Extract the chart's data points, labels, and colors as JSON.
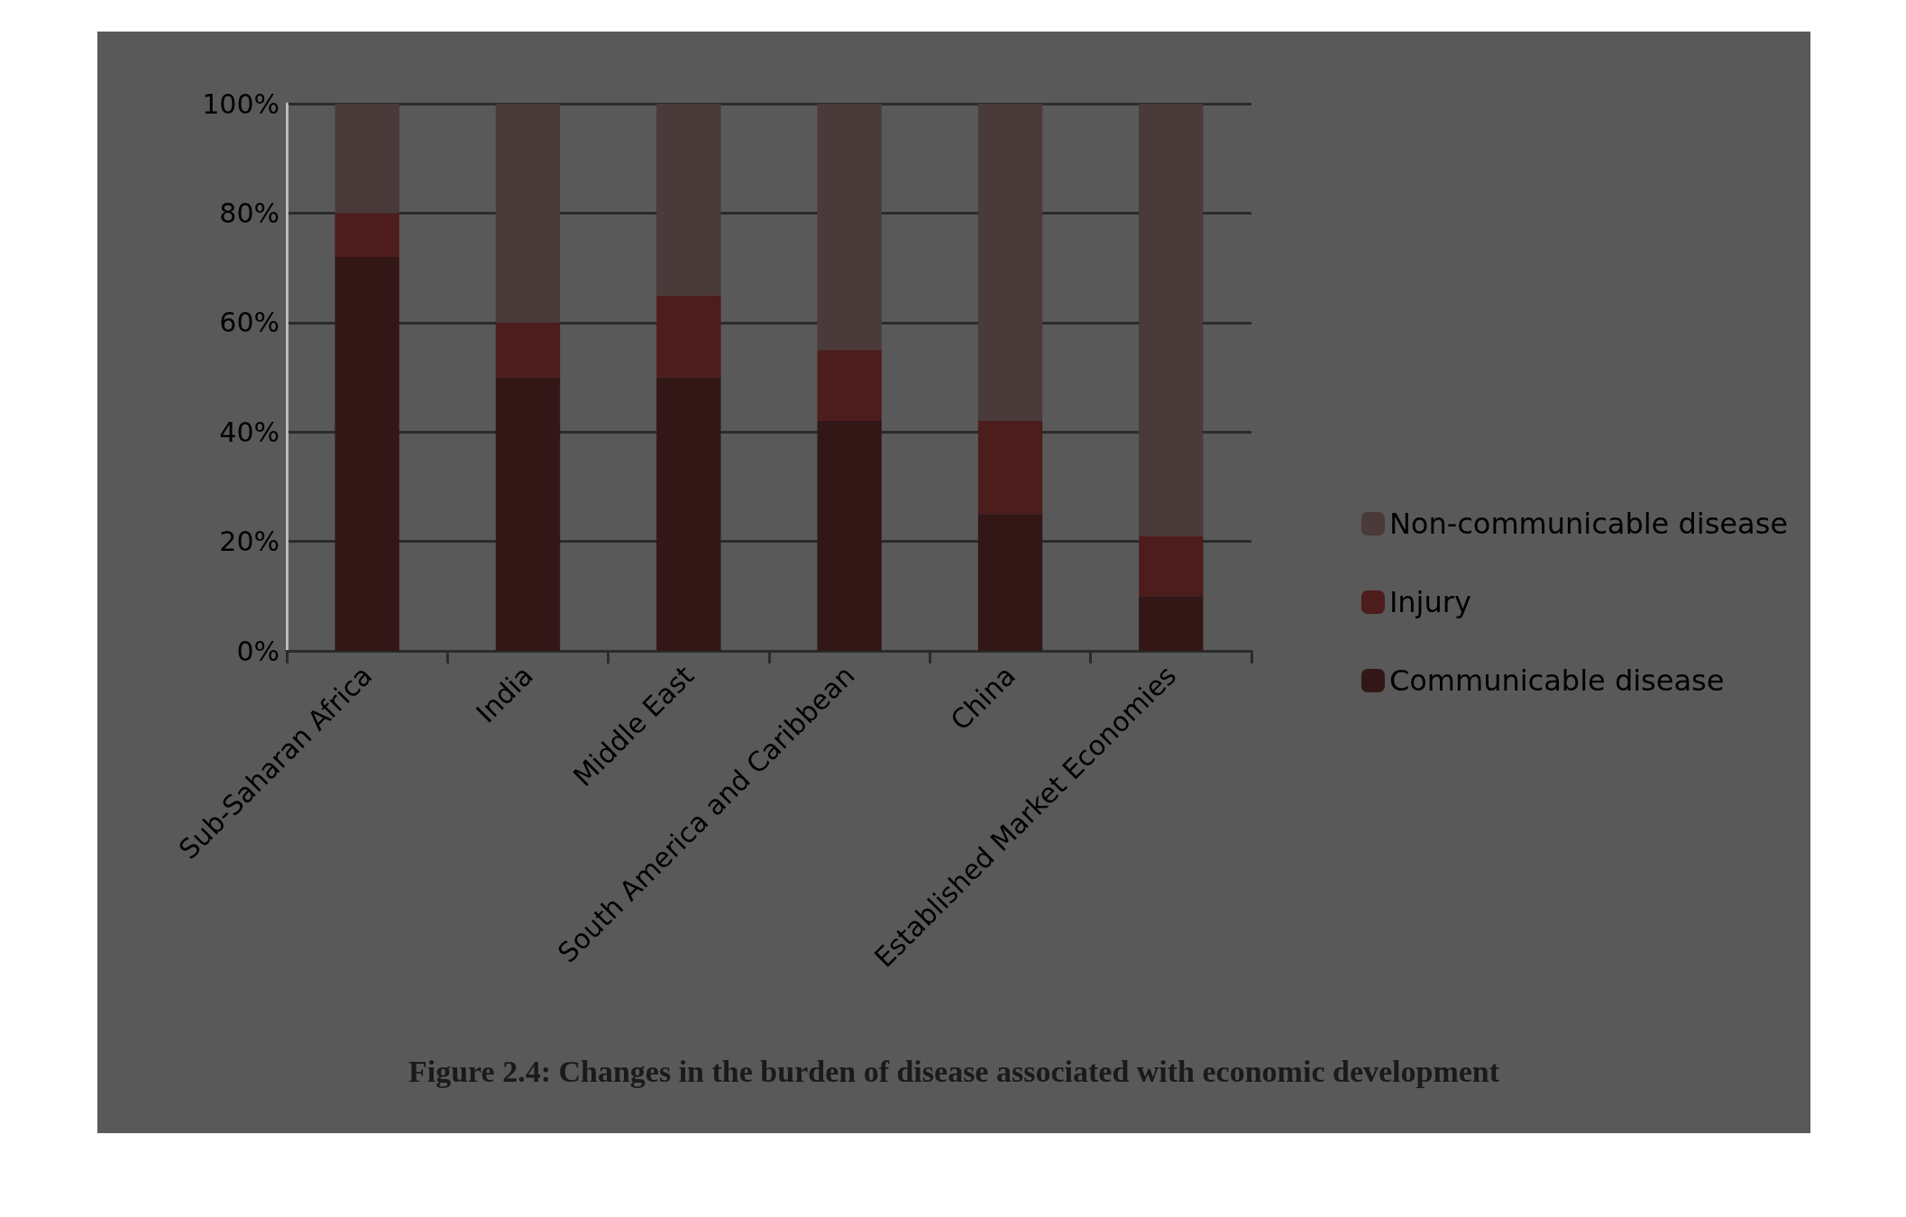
{
  "chart_data": {
    "type": "bar",
    "stacked": true,
    "title": "Figure 2.4: Changes in the burden of disease associated with economic development",
    "categories": [
      "Sub-Saharan Africa",
      "India",
      "Middle East",
      "South America and Caribbean",
      "China",
      "Established Market Economies"
    ],
    "series": [
      {
        "name": "Communicable disease",
        "color": "#331717",
        "values": [
          72,
          50,
          50,
          42,
          25,
          10
        ]
      },
      {
        "name": "Injury",
        "color": "#4d1c1c",
        "values": [
          8,
          10,
          15,
          13,
          17,
          11
        ]
      },
      {
        "name": "Non-communicable disease",
        "color": "#4a3a3a",
        "values": [
          20,
          40,
          35,
          45,
          58,
          79
        ]
      }
    ],
    "ylim": [
      0,
      100
    ],
    "yticks": [
      {
        "value": 0,
        "label": "0%"
      },
      {
        "value": 20,
        "label": "20%"
      },
      {
        "value": 40,
        "label": "40%"
      },
      {
        "value": 60,
        "label": "60%"
      },
      {
        "value": 80,
        "label": "80%"
      },
      {
        "value": 100,
        "label": "100%"
      }
    ],
    "grid": "y",
    "legend": "right"
  }
}
